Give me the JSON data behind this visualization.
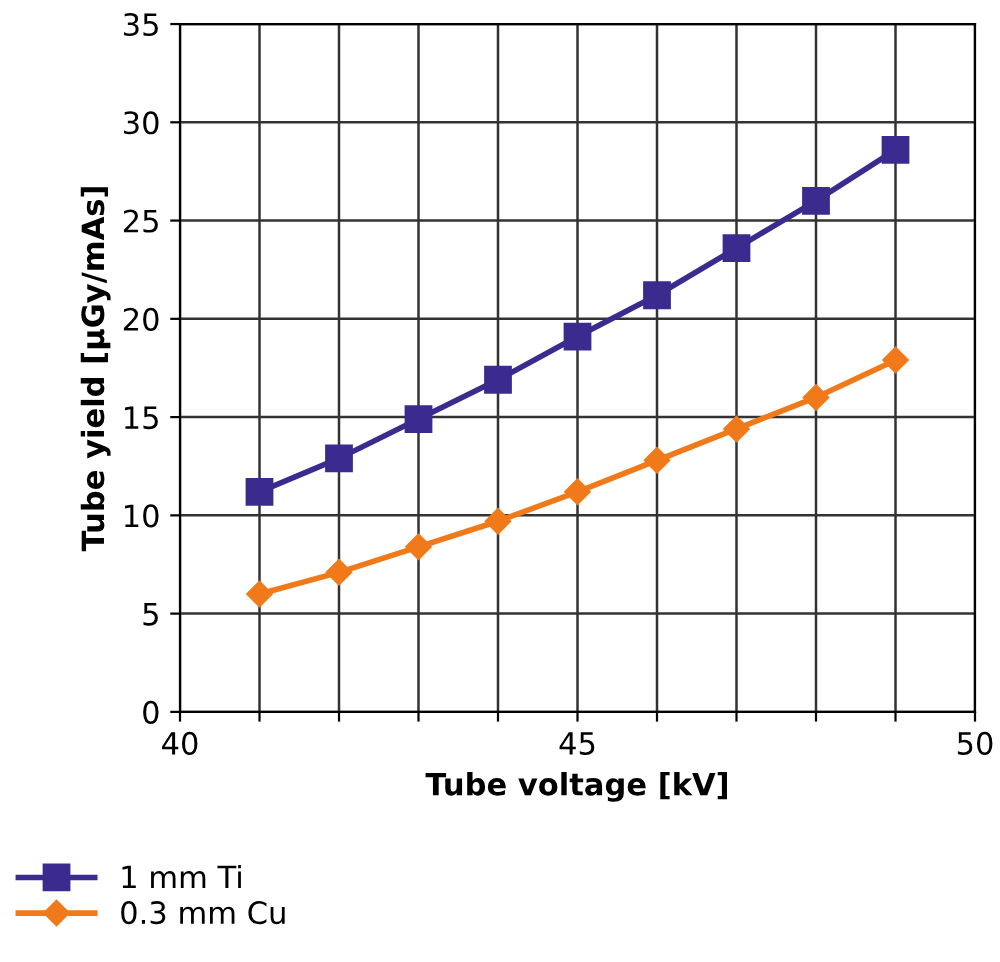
{
  "chart_data": {
    "type": "line",
    "xlabel": "Tube voltage [kV]",
    "ylabel": "Tube yield [µGy/mAs]",
    "x": [
      41,
      42,
      43,
      44,
      45,
      46,
      47,
      48,
      49
    ],
    "series": [
      {
        "name": "1 mm Ti",
        "color": "#3b2b8e",
        "marker": "square",
        "values": [
          11.2,
          12.9,
          14.9,
          16.9,
          19.1,
          21.2,
          23.6,
          26.0,
          28.6
        ]
      },
      {
        "name": "0.3 mm Cu",
        "color": "#f07a1a",
        "marker": "diamond",
        "values": [
          6.0,
          7.1,
          8.4,
          9.7,
          11.2,
          12.8,
          14.4,
          16.0,
          17.9
        ]
      }
    ],
    "xlim": [
      40,
      50
    ],
    "xticks": [
      40,
      {
        "value": 41,
        "label": null
      },
      {
        "value": 42,
        "label": null
      },
      {
        "value": 43,
        "label": null
      },
      {
        "value": 44,
        "label": null
      },
      45,
      {
        "value": 46,
        "label": null
      },
      {
        "value": 47,
        "label": null
      },
      {
        "value": 48,
        "label": null
      },
      {
        "value": 49,
        "label": null
      },
      50
    ],
    "ylim": [
      0,
      35
    ],
    "yticks": [
      0,
      5,
      10,
      15,
      20,
      25,
      30,
      35
    ],
    "grid": true,
    "legend": "bottom left",
    "line_style": "solid"
  }
}
